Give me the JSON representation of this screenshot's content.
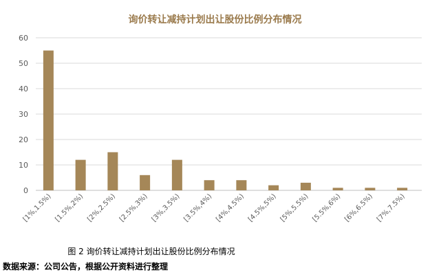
{
  "chart_data": {
    "type": "bar",
    "title": "询价转让减持计划出让股份比例分布情况",
    "xlabel": "",
    "ylabel": "",
    "categories": [
      "[1%,1.5%)",
      "[1.5%,2%)",
      "[2%,2.5%)",
      "[2.5%,3%)",
      "[3%,3.5%)",
      "[3.5%,4%)",
      "[4%,4.5%)",
      "[4.5%,5%)",
      "[5%,5.5%)",
      "[5.5%,6%)",
      "[6%,6.5%)",
      "[7%,7.5%)"
    ],
    "values": [
      55,
      12,
      15,
      6,
      12,
      4,
      4,
      2,
      3,
      1,
      1,
      1
    ],
    "ylim": [
      0,
      60
    ],
    "yticks": [
      0,
      10,
      20,
      30,
      40,
      50,
      60
    ],
    "grid": true,
    "legend": "none",
    "bar_color": "#a58758",
    "title_color": "#9a7a4c"
  },
  "caption": "图 2  询价转让减持计划出让股份比例分布情况",
  "source": "数据来源：公司公告，根据公开资料进行整理"
}
